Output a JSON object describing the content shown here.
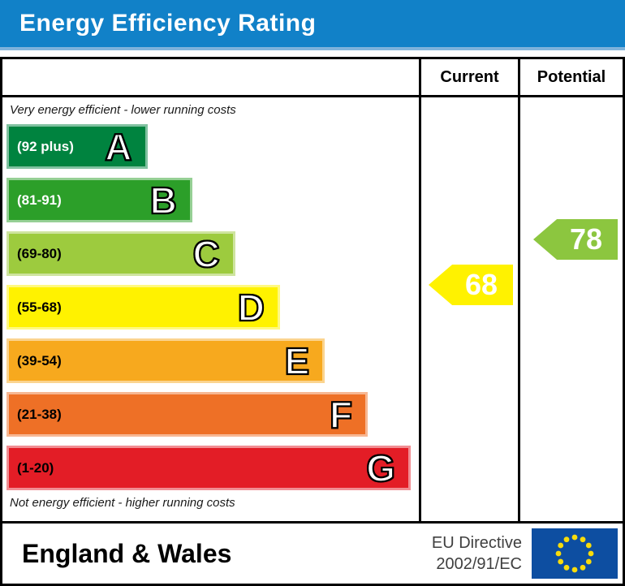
{
  "header": {
    "title": "Energy Efficiency Rating",
    "background": "#1181C8"
  },
  "columns": {
    "current": "Current",
    "potential": "Potential"
  },
  "captions": {
    "top": "Very energy efficient - lower running costs",
    "bottom": "Not energy efficient - higher running costs"
  },
  "chart_data": {
    "type": "bar",
    "title": "Energy Efficiency Rating",
    "bands": [
      {
        "letter": "A",
        "range_label": "(92 plus)",
        "min": 92,
        "max": 100,
        "color": "#00833F",
        "border": "#80C1A0",
        "label_color": "#FFFFFF",
        "width_pct": 34.5
      },
      {
        "letter": "B",
        "range_label": "(81-91)",
        "min": 81,
        "max": 91,
        "color": "#2C9F29",
        "border": "#96D095",
        "label_color": "#FFFFFF",
        "width_pct": 45.5
      },
      {
        "letter": "C",
        "range_label": "(69-80)",
        "min": 69,
        "max": 80,
        "color": "#9DCB3E",
        "border": "#CEE49F",
        "label_color": "#000000",
        "width_pct": 56.0
      },
      {
        "letter": "D",
        "range_label": "(55-68)",
        "min": 55,
        "max": 68,
        "color": "#FFF200",
        "border": "#FFF980",
        "label_color": "#000000",
        "width_pct": 67.0
      },
      {
        "letter": "E",
        "range_label": "(39-54)",
        "min": 39,
        "max": 54,
        "color": "#F7A91E",
        "border": "#FBD48F",
        "label_color": "#000000",
        "width_pct": 78.0
      },
      {
        "letter": "F",
        "range_label": "(21-38)",
        "min": 21,
        "max": 38,
        "color": "#EE7026",
        "border": "#F7B793",
        "label_color": "#000000",
        "width_pct": 88.5
      },
      {
        "letter": "G",
        "range_label": "(1-20)",
        "min": 1,
        "max": 20,
        "color": "#E31D26",
        "border": "#F18E93",
        "label_color": "#000000",
        "width_pct": 99.0
      }
    ],
    "current": {
      "value": 68,
      "band": "D",
      "color": "#FFF200"
    },
    "potential": {
      "value": 78,
      "band": "C",
      "color": "#8CC63F"
    },
    "ylim": [
      1,
      100
    ],
    "legend_position": "none",
    "grid": false
  },
  "footer": {
    "region": "England & Wales",
    "directive_line1": "EU Directive",
    "directive_line2": "2002/91/EC",
    "eu_flag": {
      "background": "#0D4EA1",
      "star_color": "#F8DC0B"
    }
  }
}
